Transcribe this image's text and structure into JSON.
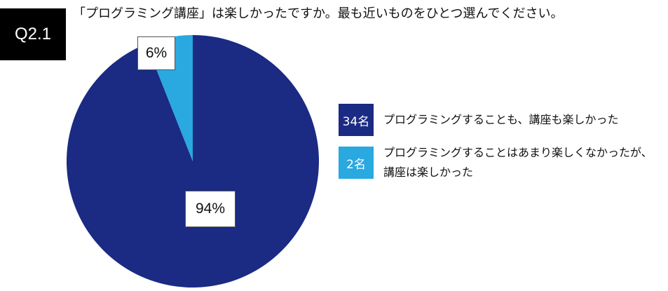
{
  "badge": "Q2.1",
  "question": "「プログラミング講座」は楽しかったですか。最も近いものをひとつ選んでください。",
  "colors": {
    "series1": "#1b2a83",
    "series2": "#2aa8e0"
  },
  "chart_data": {
    "type": "pie",
    "slices": [
      {
        "label_pct": "94%",
        "value": 94,
        "count": "34名",
        "legend_lines": [
          "プログラミングすることも、講座も楽しかった"
        ],
        "color": "#1b2a83"
      },
      {
        "label_pct": "6%",
        "value": 6,
        "count": "2名",
        "legend_lines": [
          "プログラミングすることはあまり楽しくなかったが、",
          "講座は楽しかった"
        ],
        "color": "#2aa8e0"
      }
    ]
  }
}
